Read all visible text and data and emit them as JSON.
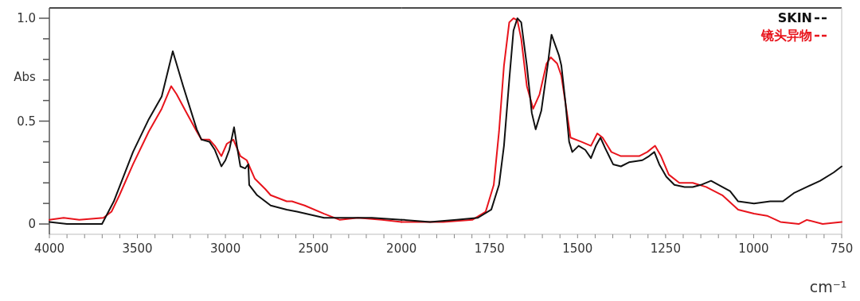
{
  "chart_data": [
    {
      "type": "line",
      "ylabel": "Abs",
      "line_style": "solid",
      "xlim": [
        4000,
        2000
      ],
      "xticks": [
        4000,
        {
          "value": 3900,
          "label": null
        },
        {
          "value": 3800,
          "label": null
        },
        {
          "value": 3700,
          "label": null
        },
        {
          "value": 3600,
          "label": null
        },
        3500,
        {
          "value": 3400,
          "label": null
        },
        {
          "value": 3300,
          "label": null
        },
        {
          "value": 3200,
          "label": null
        },
        {
          "value": 3100,
          "label": null
        },
        3000,
        {
          "value": 2900,
          "label": null
        },
        {
          "value": 2800,
          "label": null
        },
        {
          "value": 2700,
          "label": null
        },
        {
          "value": 2600,
          "label": null
        },
        2500,
        {
          "value": 2400,
          "label": null
        },
        {
          "value": 2300,
          "label": null
        },
        {
          "value": 2200,
          "label": null
        },
        {
          "value": 2100,
          "label": null
        },
        2000
      ],
      "ylim": [
        -0.05,
        1.05
      ],
      "yticks": [
        0,
        {
          "value": 0.1,
          "label": null
        },
        {
          "value": 0.2,
          "label": null
        },
        {
          "value": 0.3,
          "label": null
        },
        {
          "value": 0.4,
          "label": null
        },
        0.5,
        {
          "value": 0.6,
          "label": null
        },
        {
          "value": 0.7,
          "label": null
        },
        {
          "value": 0.8,
          "label": null
        },
        {
          "value": 0.9,
          "label": null
        },
        {
          "value": 1,
          "label": "1.0"
        }
      ],
      "series": [
        {
          "color": "#111111",
          "x": [
            4000,
            3900,
            3800,
            3701,
            3634,
            3525,
            3435,
            3362,
            3299,
            3240,
            3163,
            3136,
            3091,
            3060,
            3023,
            3000,
            2978,
            2951,
            2933,
            2915,
            2888,
            2870,
            2865,
            2820,
            2743,
            2652,
            2593,
            2440,
            2290,
            2168,
            2000
          ],
          "values": [
            0.01,
            0.0,
            0.0,
            0.0,
            0.11,
            0.35,
            0.51,
            0.62,
            0.84,
            0.67,
            0.46,
            0.41,
            0.4,
            0.36,
            0.28,
            0.31,
            0.36,
            0.47,
            0.37,
            0.28,
            0.27,
            0.29,
            0.19,
            0.14,
            0.09,
            0.07,
            0.06,
            0.03,
            0.03,
            0.03,
            0.02
          ]
        },
        {
          "color": "#e8141c",
          "x": [
            4000,
            3919,
            3830,
            3693,
            3647,
            3602,
            3525,
            3435,
            3362,
            3308,
            3277,
            3227,
            3163,
            3136,
            3091,
            3060,
            3023,
            2992,
            2955,
            2915,
            2879,
            2833,
            2774,
            2743,
            2652,
            2622,
            2550,
            2440,
            2350,
            2247,
            2111,
            2000
          ],
          "values": [
            0.02,
            0.03,
            0.02,
            0.03,
            0.06,
            0.14,
            0.29,
            0.45,
            0.56,
            0.67,
            0.63,
            0.55,
            0.45,
            0.41,
            0.41,
            0.38,
            0.33,
            0.39,
            0.41,
            0.33,
            0.31,
            0.22,
            0.17,
            0.14,
            0.11,
            0.11,
            0.09,
            0.05,
            0.02,
            0.03,
            0.02,
            0.01
          ]
        }
      ]
    },
    {
      "type": "line",
      "xlabel": "cm⁻¹",
      "legend": "top right",
      "line_style": "solid",
      "tick_labels": "x",
      "xlim": [
        2000,
        750
      ],
      "xticks": [
        {
          "value": 1950,
          "label": null
        },
        {
          "value": 1900,
          "label": null
        },
        {
          "value": 1850,
          "label": null
        },
        {
          "value": 1800,
          "label": null
        },
        1750,
        {
          "value": 1700,
          "label": null
        },
        {
          "value": 1650,
          "label": null
        },
        {
          "value": 1600,
          "label": null
        },
        {
          "value": 1550,
          "label": null
        },
        1500,
        {
          "value": 1450,
          "label": null
        },
        {
          "value": 1400,
          "label": null
        },
        {
          "value": 1350,
          "label": null
        },
        {
          "value": 1300,
          "label": null
        },
        1250,
        {
          "value": 1200,
          "label": null
        },
        {
          "value": 1150,
          "label": null
        },
        {
          "value": 1100,
          "label": null
        },
        {
          "value": 1050,
          "label": null
        },
        1000,
        {
          "value": 950,
          "label": null
        },
        {
          "value": 900,
          "label": null
        },
        {
          "value": 850,
          "label": null
        },
        {
          "value": 800,
          "label": null
        },
        750
      ],
      "ylim": [
        -0.05,
        1.05
      ],
      "series": [
        {
          "name": "SKIN",
          "color": "#111111",
          "x": [
            2000,
            1994,
            1919,
            1844,
            1783,
            1745,
            1723,
            1709,
            1694,
            1682,
            1671,
            1660,
            1644,
            1630,
            1619,
            1603,
            1585,
            1574,
            1553,
            1546,
            1535,
            1524,
            1515,
            1497,
            1478,
            1462,
            1448,
            1435,
            1422,
            1399,
            1377,
            1354,
            1316,
            1297,
            1282,
            1268,
            1248,
            1225,
            1196,
            1173,
            1150,
            1121,
            1089,
            1067,
            1044,
            999,
            953,
            917,
            886,
            849,
            811,
            773,
            750
          ],
          "values": [
            0.02,
            0.02,
            0.01,
            0.02,
            0.03,
            0.07,
            0.19,
            0.38,
            0.7,
            0.94,
            1.0,
            0.98,
            0.77,
            0.54,
            0.46,
            0.55,
            0.77,
            0.92,
            0.82,
            0.77,
            0.6,
            0.4,
            0.35,
            0.38,
            0.36,
            0.32,
            0.38,
            0.42,
            0.37,
            0.29,
            0.28,
            0.3,
            0.31,
            0.33,
            0.35,
            0.29,
            0.23,
            0.19,
            0.18,
            0.18,
            0.19,
            0.21,
            0.18,
            0.16,
            0.11,
            0.1,
            0.11,
            0.11,
            0.15,
            0.18,
            0.21,
            0.25,
            0.28
          ]
        },
        {
          "name": "镜头异物",
          "color": "#e8141c",
          "x": [
            2000,
            1980,
            1881,
            1799,
            1761,
            1738,
            1723,
            1709,
            1694,
            1682,
            1671,
            1660,
            1644,
            1626,
            1608,
            1588,
            1576,
            1558,
            1546,
            1531,
            1520,
            1490,
            1462,
            1444,
            1429,
            1404,
            1377,
            1325,
            1302,
            1280,
            1263,
            1241,
            1211,
            1173,
            1135,
            1089,
            1044,
            999,
            962,
            924,
            872,
            849,
            804,
            750
          ],
          "values": [
            0.01,
            0.01,
            0.01,
            0.02,
            0.06,
            0.19,
            0.45,
            0.77,
            0.98,
            1.0,
            0.99,
            0.9,
            0.67,
            0.56,
            0.63,
            0.78,
            0.81,
            0.78,
            0.72,
            0.55,
            0.42,
            0.4,
            0.38,
            0.44,
            0.42,
            0.35,
            0.33,
            0.33,
            0.35,
            0.38,
            0.33,
            0.24,
            0.2,
            0.2,
            0.18,
            0.14,
            0.07,
            0.05,
            0.04,
            0.01,
            0.0,
            0.02,
            0.0,
            0.01
          ]
        }
      ]
    }
  ]
}
